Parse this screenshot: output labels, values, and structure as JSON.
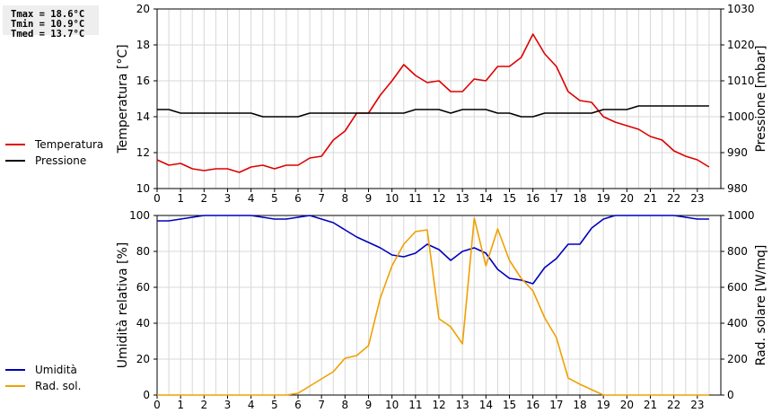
{
  "stats": {
    "tmax": "Tmax = 18.6°C",
    "tmin": "Tmin = 10.9°C",
    "tmed": "Tmed = 13.7°C"
  },
  "chart_data": [
    {
      "type": "line",
      "x": [
        0,
        0.5,
        1,
        1.5,
        2,
        2.5,
        3,
        3.5,
        4,
        4.5,
        5,
        5.5,
        6,
        6.5,
        7,
        7.5,
        8,
        8.5,
        9,
        9.5,
        10,
        10.5,
        11,
        11.5,
        12,
        12.5,
        13,
        13.5,
        14,
        14.5,
        15,
        15.5,
        16,
        16.5,
        17,
        17.5,
        18,
        18.5,
        19,
        19.5,
        20,
        20.5,
        21,
        21.5,
        22,
        22.5,
        23,
        23.5
      ],
      "xticks": [
        0,
        1,
        2,
        3,
        4,
        5,
        6,
        7,
        8,
        9,
        10,
        11,
        12,
        13,
        14,
        15,
        16,
        17,
        18,
        19,
        20,
        21,
        22,
        23
      ],
      "xlim": [
        0,
        24
      ],
      "series": [
        {
          "name": "Temperatura",
          "axis": "left",
          "color": "#dd0000",
          "values": [
            11.6,
            11.3,
            11.4,
            11.1,
            11.0,
            11.1,
            11.1,
            10.9,
            11.2,
            11.3,
            11.1,
            11.3,
            11.3,
            11.7,
            11.8,
            12.7,
            13.2,
            14.2,
            14.2,
            15.2,
            16.0,
            16.9,
            16.3,
            15.9,
            16.0,
            15.4,
            15.4,
            16.1,
            16.0,
            16.8,
            16.8,
            17.3,
            18.6,
            17.5,
            16.8,
            15.4,
            14.9,
            14.8,
            14.0,
            13.7,
            13.5,
            13.3,
            12.9,
            12.7,
            12.1,
            11.8,
            11.6,
            11.2
          ]
        },
        {
          "name": "Pressione",
          "axis": "right",
          "color": "#000000",
          "values": [
            1002,
            1002,
            1001,
            1001,
            1001,
            1001,
            1001,
            1001,
            1001,
            1000,
            1000,
            1000,
            1000,
            1001,
            1001,
            1001,
            1001,
            1001,
            1001,
            1001,
            1001,
            1001,
            1002,
            1002,
            1002,
            1001,
            1002,
            1002,
            1002,
            1001,
            1001,
            1000,
            1000,
            1001,
            1001,
            1001,
            1001,
            1001,
            1002,
            1002,
            1002,
            1003,
            1003,
            1003,
            1003,
            1003,
            1003,
            1003
          ]
        }
      ],
      "ylabel_left": "Temperatura [°C]",
      "ylim_left": [
        10,
        20
      ],
      "yticks_left": [
        "10",
        "12",
        "14",
        "16",
        "18",
        "20"
      ],
      "ylabel_right": "Pressione [mbar]",
      "ylim_right": [
        980,
        1030
      ],
      "yticks_right": [
        "980",
        "990",
        "1000",
        "1010",
        "1020",
        "1030"
      ],
      "grid": true,
      "legend": "left"
    },
    {
      "type": "line",
      "x": [
        0,
        0.5,
        1,
        1.5,
        2,
        2.5,
        3,
        3.5,
        4,
        4.5,
        5,
        5.5,
        6,
        6.5,
        7,
        7.5,
        8,
        8.5,
        9,
        9.5,
        10,
        10.5,
        11,
        11.5,
        12,
        12.5,
        13,
        13.5,
        14,
        14.5,
        15,
        15.5,
        16,
        16.5,
        17,
        17.5,
        18,
        18.5,
        19,
        19.5,
        20,
        20.5,
        21,
        21.5,
        22,
        22.5,
        23,
        23.5
      ],
      "xticks": [
        0,
        1,
        2,
        3,
        4,
        5,
        6,
        7,
        8,
        9,
        10,
        11,
        12,
        13,
        14,
        15,
        16,
        17,
        18,
        19,
        20,
        21,
        22,
        23
      ],
      "xlim": [
        0,
        24
      ],
      "series": [
        {
          "name": "Umidità",
          "axis": "left",
          "color": "#0000bb",
          "values": [
            97,
            97,
            98,
            99,
            100,
            100,
            100,
            100,
            100,
            99,
            98,
            98,
            99,
            100,
            98,
            96,
            92,
            88,
            85,
            82,
            78,
            77,
            79,
            84,
            81,
            75,
            80,
            82,
            79,
            70,
            65,
            64,
            62,
            71,
            76,
            84,
            84,
            93,
            98,
            100,
            100,
            100,
            100,
            100,
            100,
            99,
            98,
            98
          ]
        },
        {
          "name": "Rad. sol.",
          "axis": "right",
          "color": "#f0a000",
          "values": [
            0,
            0,
            0,
            0,
            0,
            0,
            0,
            0,
            0,
            0,
            0,
            0,
            10,
            50,
            90,
            130,
            205,
            220,
            275,
            540,
            720,
            840,
            910,
            920,
            425,
            380,
            285,
            985,
            720,
            925,
            750,
            650,
            580,
            430,
            320,
            95,
            60,
            30,
            0,
            0,
            0,
            0,
            0,
            0,
            0,
            0,
            0,
            0
          ]
        }
      ],
      "ylabel_left": "Umidità relativa [%]",
      "ylim_left": [
        0,
        100
      ],
      "yticks_left": [
        "0",
        "20",
        "40",
        "60",
        "80",
        "100"
      ],
      "ylabel_right": "Rad. solare [W/mq]",
      "ylim_right": [
        0,
        1000
      ],
      "yticks_right": [
        "0",
        "200",
        "400",
        "600",
        "800",
        "1000"
      ],
      "grid": true,
      "legend": "left"
    }
  ]
}
